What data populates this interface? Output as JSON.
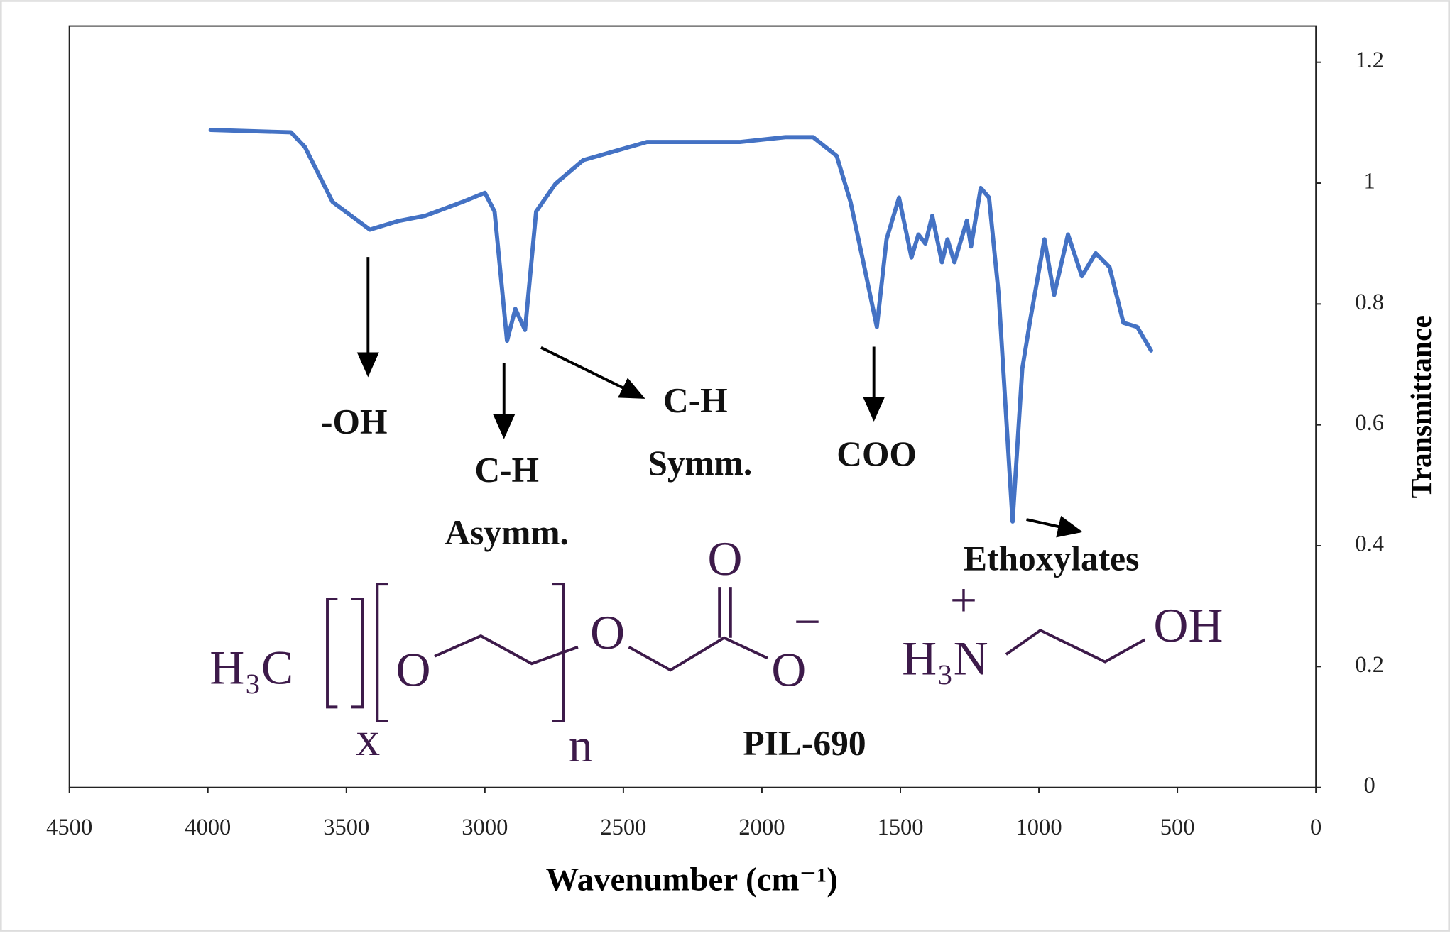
{
  "chart_data": {
    "type": "line",
    "xlabel": "Wavenumber (cm⁻¹)",
    "ylabel": "Transmittance",
    "xlim": [
      4500,
      0
    ],
    "xticks": [
      4500,
      4000,
      3500,
      3000,
      2500,
      2000,
      1500,
      1000,
      500,
      0
    ],
    "ylim": [
      0,
      1.26
    ],
    "yticks": [
      0,
      0.2,
      0.4,
      0.6,
      0.8,
      1,
      1.2
    ],
    "series": [
      {
        "color": "#4472c4",
        "x": [
          3990,
          3700,
          3650,
          3550,
          3415,
          3315,
          3215,
          3080,
          3000,
          2965,
          2920,
          2890,
          2855,
          2815,
          2745,
          2645,
          2415,
          2080,
          1915,
          1815,
          1730,
          1680,
          1630,
          1585,
          1550,
          1505,
          1460,
          1435,
          1410,
          1385,
          1350,
          1330,
          1305,
          1260,
          1245,
          1210,
          1180,
          1145,
          1095,
          1060,
          1030,
          980,
          945,
          895,
          845,
          795,
          745,
          695,
          645,
          595
        ],
        "values": [
          1.088,
          1.084,
          1.06,
          0.969,
          0.923,
          0.937,
          0.946,
          0.969,
          0.984,
          0.953,
          0.739,
          0.792,
          0.757,
          0.953,
          0.999,
          1.038,
          1.068,
          1.068,
          1.076,
          1.076,
          1.045,
          0.969,
          0.861,
          0.762,
          0.907,
          0.976,
          0.877,
          0.915,
          0.9,
          0.946,
          0.869,
          0.907,
          0.869,
          0.938,
          0.895,
          0.992,
          0.976,
          0.815,
          0.44,
          0.693,
          0.777,
          0.907,
          0.815,
          0.915,
          0.846,
          0.884,
          0.861,
          0.769,
          0.762,
          0.723
        ]
      }
    ],
    "annotations": [
      "-OH",
      "C-H",
      "Asymm.",
      "C-H",
      "Symm.",
      "COO",
      "Ethoxylates",
      "PIL-690"
    ],
    "structure": [
      "H₃C",
      "O",
      "O",
      "O",
      "O",
      "−",
      "x",
      "n",
      "+",
      "H₃N",
      "OH"
    ]
  }
}
